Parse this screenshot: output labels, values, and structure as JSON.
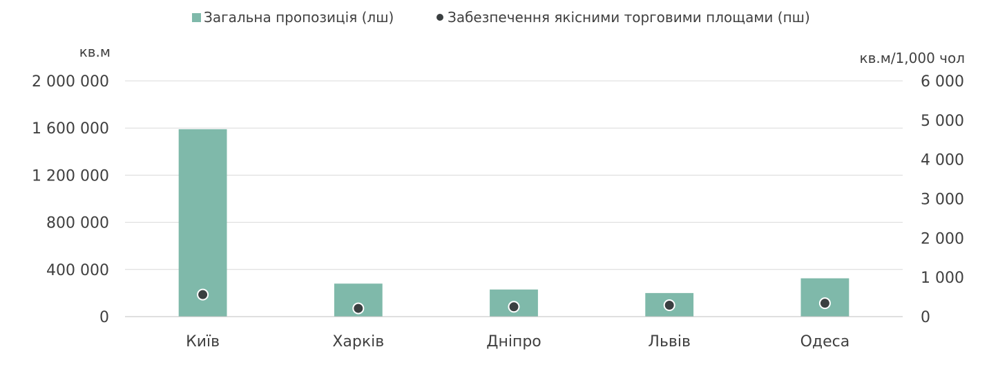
{
  "chart_data": {
    "type": "bar",
    "categories": [
      "Київ",
      "Харків",
      "Дніпро",
      "Львів",
      "Одеса"
    ],
    "series": [
      {
        "name": "Загальна пропозиція (лш)",
        "type": "bar",
        "axis": "left",
        "color": "#7fb9aa",
        "values": [
          1590000,
          280000,
          230000,
          200000,
          325000
        ]
      },
      {
        "name": "Забезпечення якісними торговими площами (пш)",
        "type": "scatter",
        "axis": "right",
        "color": "#3a3f40",
        "values": [
          560,
          210,
          250,
          290,
          340
        ]
      }
    ],
    "y_left": {
      "label": "кв.м",
      "lim": [
        0,
        2000000
      ],
      "ticks": [
        {
          "value": 0,
          "label": "0"
        },
        {
          "value": 400000,
          "label": "400 000"
        },
        {
          "value": 800000,
          "label": "800 000"
        },
        {
          "value": 1200000,
          "label": "1 200 000"
        },
        {
          "value": 1600000,
          "label": "1 600 000"
        },
        {
          "value": 2000000,
          "label": "2 000 000"
        }
      ]
    },
    "y_right": {
      "label": "кв.м/1,000 чол",
      "lim": [
        0,
        6000
      ],
      "ticks": [
        {
          "value": 0,
          "label": "0"
        },
        {
          "value": 1000,
          "label": "1 000"
        },
        {
          "value": 2000,
          "label": "2 000"
        },
        {
          "value": 3000,
          "label": "3 000"
        },
        {
          "value": 4000,
          "label": "4 000"
        },
        {
          "value": 5000,
          "label": "5 000"
        },
        {
          "value": 6000,
          "label": "6 000"
        }
      ]
    },
    "grid": true,
    "legend_position": "top"
  }
}
